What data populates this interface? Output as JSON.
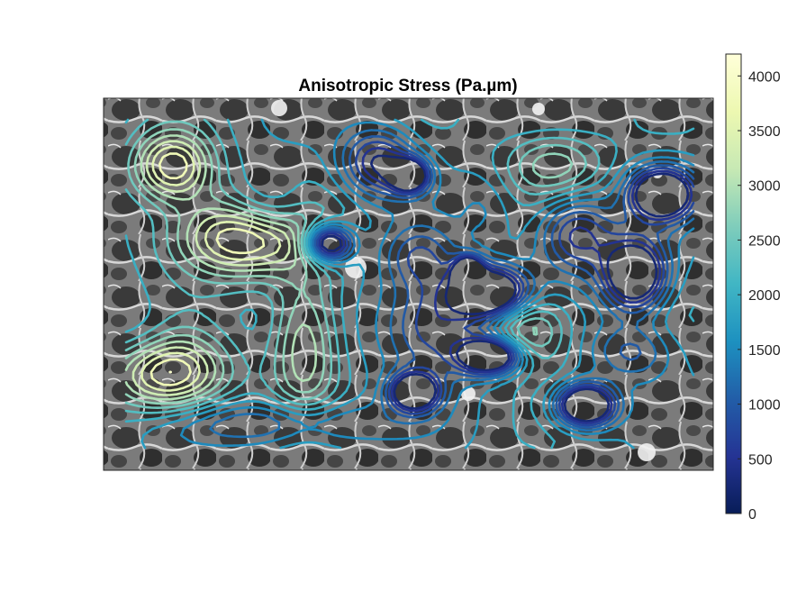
{
  "chart_data": {
    "type": "contour",
    "title": "Anisotropic Stress (Pa.µm)",
    "xlabel": "",
    "ylabel": "",
    "background": "phase-contrast cell microscopy image (grayscale)",
    "axis_ticks_visible": false,
    "grid": false,
    "colormap": "YlGnBu (dark navy at 0 to pale yellow at max)",
    "colorbar": {
      "location": "right",
      "clim": [
        0,
        4200
      ],
      "ticks": [
        0,
        500,
        1000,
        1500,
        2000,
        2500,
        3000,
        3500,
        4000
      ],
      "colors": [
        "#081d58",
        "#253494",
        "#225ea8",
        "#1d91c0",
        "#41b6c4",
        "#7fcdbb",
        "#c7e9b4",
        "#edf8b1",
        "#ffffd9"
      ]
    },
    "contour_levels": [
      250,
      500,
      750,
      1000,
      1250,
      1500,
      1750,
      2000,
      2250,
      2500,
      2750,
      3000,
      3250,
      3500,
      3750,
      4000
    ],
    "peaks": [
      {
        "region": "upper-left",
        "approx_value": 4000
      },
      {
        "region": "upper-center-left",
        "approx_value": 4200
      },
      {
        "region": "lower-left",
        "approx_value": 4100
      },
      {
        "region": "center",
        "approx_value": 3300
      },
      {
        "region": "center-right",
        "approx_value": 3200
      },
      {
        "region": "upper-right",
        "approx_value": 2900
      }
    ]
  }
}
